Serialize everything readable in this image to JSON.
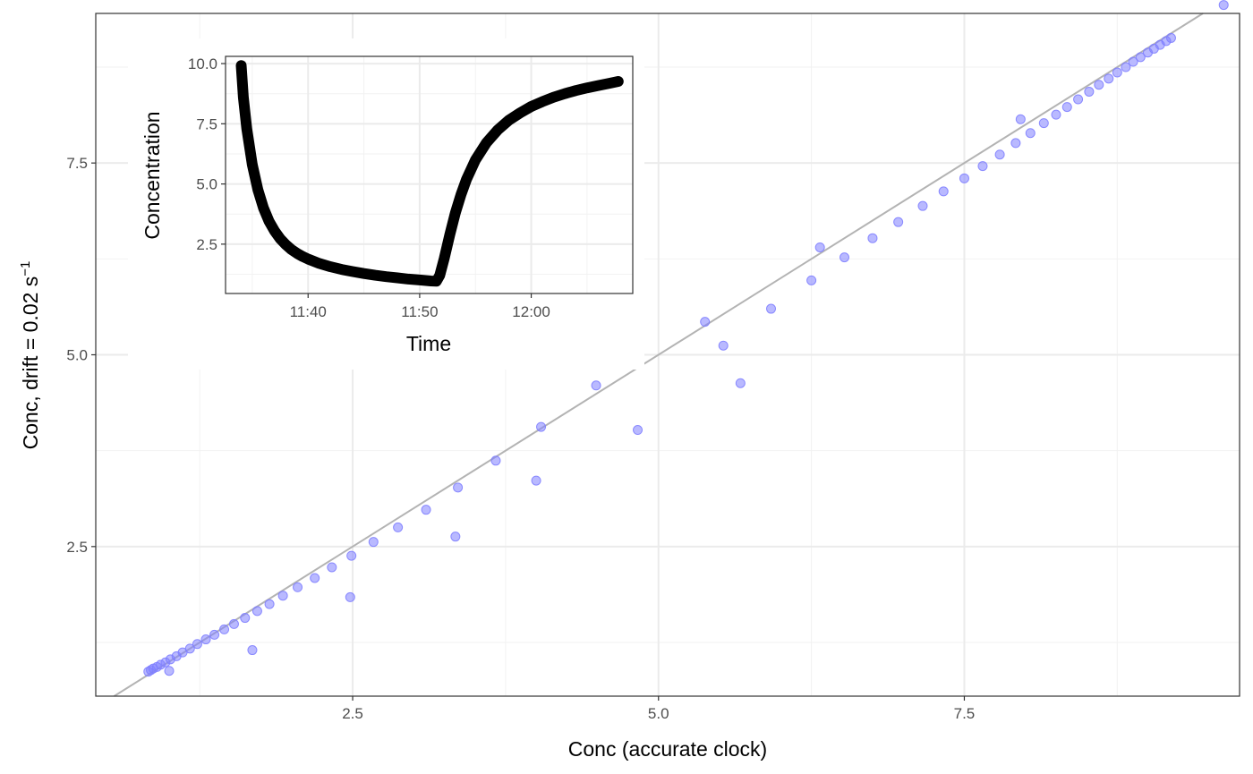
{
  "chart_data": [
    {
      "type": "scatter",
      "xlabel": "Conc (accurate clock)",
      "ylabel_main": "Conc, drift = 0.02 s",
      "ylabel_sup": "−1",
      "xlim": [
        0.4,
        9.75
      ],
      "ylim": [
        0.55,
        9.45
      ],
      "x_ticks": [
        2.5,
        5.0,
        7.5
      ],
      "x_tick_labels": [
        "2.5",
        "5.0",
        "7.5"
      ],
      "y_ticks": [
        2.5,
        5.0,
        7.5
      ],
      "y_tick_labels": [
        "2.5",
        "5.0",
        "7.5"
      ],
      "grid": true,
      "reference_line": "y = x",
      "point_color": "#8080ff",
      "line_color": "#b3b3b3",
      "points": [
        [
          0.83,
          0.87
        ],
        [
          0.85,
          0.89
        ],
        [
          0.87,
          0.91
        ],
        [
          0.9,
          0.93
        ],
        [
          0.93,
          0.96
        ],
        [
          0.97,
          0.99
        ],
        [
          1.01,
          1.03
        ],
        [
          1.06,
          1.07
        ],
        [
          1.11,
          1.12
        ],
        [
          1.17,
          1.17
        ],
        [
          1.23,
          1.23
        ],
        [
          1.3,
          1.29
        ],
        [
          1.37,
          1.35
        ],
        [
          1.45,
          1.42
        ],
        [
          1.53,
          1.49
        ],
        [
          1.62,
          1.57
        ],
        [
          1.72,
          1.66
        ],
        [
          1.82,
          1.75
        ],
        [
          1.93,
          1.86
        ],
        [
          2.05,
          1.97
        ],
        [
          2.19,
          2.09
        ],
        [
          2.33,
          2.23
        ],
        [
          2.49,
          2.38
        ],
        [
          2.67,
          2.56
        ],
        [
          2.87,
          2.75
        ],
        [
          3.1,
          2.98
        ],
        [
          3.36,
          3.27
        ],
        [
          3.67,
          3.62
        ],
        [
          4.04,
          4.06
        ],
        [
          4.49,
          4.6
        ],
        [
          5.38,
          5.43
        ],
        [
          6.32,
          6.4
        ],
        [
          7.96,
          8.07
        ],
        [
          1.0,
          0.88
        ],
        [
          1.68,
          1.15
        ],
        [
          2.48,
          1.84
        ],
        [
          3.34,
          2.63
        ],
        [
          4.0,
          3.36
        ],
        [
          4.83,
          4.02
        ],
        [
          5.67,
          4.63
        ],
        [
          5.53,
          5.12
        ],
        [
          5.92,
          5.6
        ],
        [
          6.25,
          5.97
        ],
        [
          6.52,
          6.27
        ],
        [
          6.75,
          6.52
        ],
        [
          6.96,
          6.73
        ],
        [
          7.16,
          6.94
        ],
        [
          7.33,
          7.13
        ],
        [
          7.5,
          7.3
        ],
        [
          7.65,
          7.46
        ],
        [
          7.79,
          7.61
        ],
        [
          7.92,
          7.76
        ],
        [
          8.04,
          7.89
        ],
        [
          8.15,
          8.02
        ],
        [
          8.25,
          8.13
        ],
        [
          8.34,
          8.23
        ],
        [
          8.43,
          8.33
        ],
        [
          8.52,
          8.43
        ],
        [
          8.6,
          8.52
        ],
        [
          8.68,
          8.6
        ],
        [
          8.75,
          8.68
        ],
        [
          8.82,
          8.75
        ],
        [
          8.88,
          8.82
        ],
        [
          8.94,
          8.88
        ],
        [
          9.0,
          8.94
        ],
        [
          9.05,
          8.99
        ],
        [
          9.1,
          9.04
        ],
        [
          9.15,
          9.09
        ],
        [
          9.19,
          9.13
        ],
        [
          9.62,
          9.56
        ]
      ]
    },
    {
      "type": "line",
      "xlabel": "Time",
      "ylabel": "Concentration",
      "x_tick_labels": [
        "11:40",
        "11:50",
        "12:00"
      ],
      "y_tick_labels": [
        "2.5",
        "5.0",
        "7.5",
        "10.0"
      ],
      "y_ticks": [
        2.5,
        5.0,
        7.5,
        10.0
      ],
      "xlim_minutes_after_11_00": [
        32.6,
        69.1
      ],
      "ylim": [
        0.45,
        10.3
      ],
      "grid": true,
      "line_color": "#000000",
      "series_points": [
        [
          34.0,
          9.92
        ],
        [
          34.2,
          8.6
        ],
        [
          34.5,
          7.3
        ],
        [
          35.0,
          5.8
        ],
        [
          35.5,
          4.75
        ],
        [
          36.0,
          4.0
        ],
        [
          36.5,
          3.45
        ],
        [
          37.0,
          3.05
        ],
        [
          37.5,
          2.72
        ],
        [
          38.0,
          2.48
        ],
        [
          38.5,
          2.28
        ],
        [
          39.0,
          2.12
        ],
        [
          39.5,
          1.99
        ],
        [
          40.0,
          1.88
        ],
        [
          41.0,
          1.7
        ],
        [
          42.0,
          1.56
        ],
        [
          43.0,
          1.45
        ],
        [
          44.0,
          1.36
        ],
        [
          45.0,
          1.28
        ],
        [
          46.0,
          1.21
        ],
        [
          47.0,
          1.15
        ],
        [
          48.0,
          1.1
        ],
        [
          49.0,
          1.05
        ],
        [
          50.0,
          1.01
        ],
        [
          51.0,
          0.97
        ],
        [
          51.5,
          0.96
        ],
        [
          51.8,
          1.2
        ],
        [
          52.2,
          1.9
        ],
        [
          52.7,
          2.9
        ],
        [
          53.2,
          3.8
        ],
        [
          53.7,
          4.55
        ],
        [
          54.2,
          5.2
        ],
        [
          55.0,
          6.0
        ],
        [
          56.0,
          6.72
        ],
        [
          57.0,
          7.25
        ],
        [
          58.0,
          7.65
        ],
        [
          59.0,
          7.95
        ],
        [
          60.0,
          8.22
        ],
        [
          61.0,
          8.42
        ],
        [
          62.0,
          8.6
        ],
        [
          63.0,
          8.75
        ],
        [
          64.0,
          8.88
        ],
        [
          65.0,
          8.99
        ],
        [
          66.0,
          9.09
        ],
        [
          67.0,
          9.18
        ],
        [
          67.8,
          9.26
        ]
      ]
    }
  ]
}
